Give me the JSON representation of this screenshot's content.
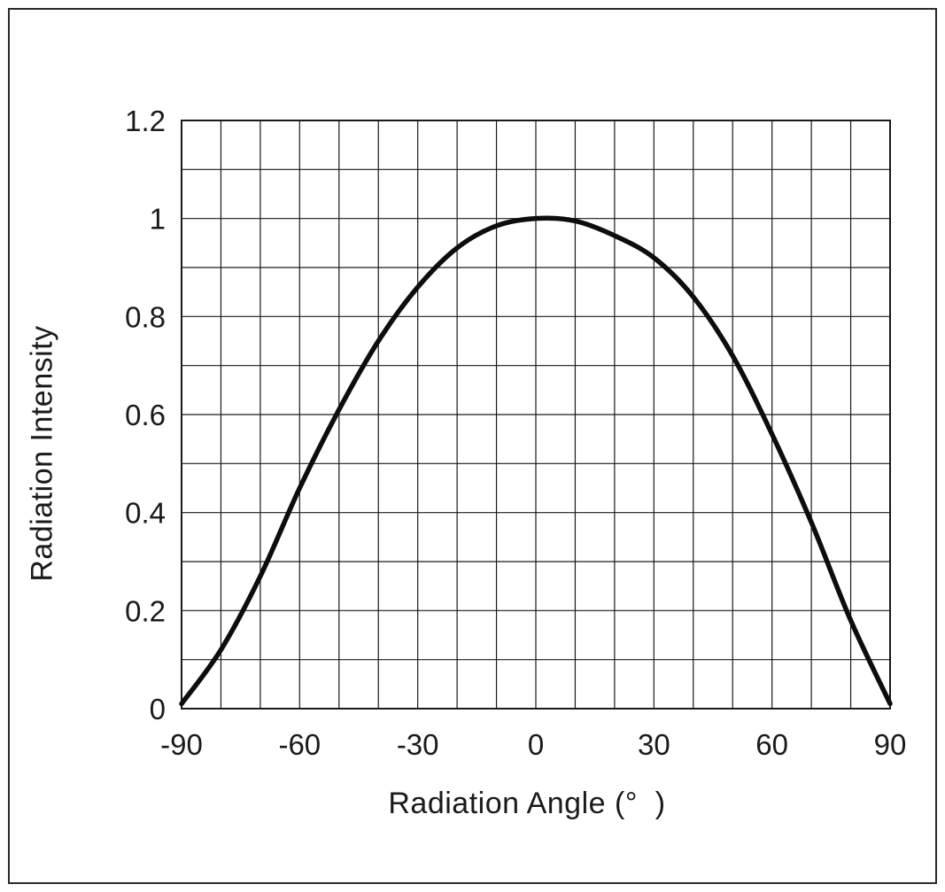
{
  "figure": {
    "background": "#ffffff",
    "frame_color": "#2a2a2a"
  },
  "chart_data": {
    "type": "line",
    "title": "",
    "xlabel": "Radiation Angle (°  )",
    "ylabel": "Radiation Intensity",
    "xlim": [
      -90,
      90
    ],
    "ylim": [
      0,
      1.2
    ],
    "x_major_ticks": [
      -90,
      -60,
      -30,
      0,
      30,
      60,
      90
    ],
    "x_tick_labels": [
      "-90",
      "-60",
      "-30",
      "0",
      "30",
      "60",
      "90"
    ],
    "y_major_ticks": [
      0,
      0.2,
      0.4,
      0.6,
      0.8,
      1,
      1.2
    ],
    "y_tick_labels": [
      "0",
      "0.2",
      "0.4",
      "0.6",
      "0.8",
      "1",
      "1.2"
    ],
    "x_minor_step": 10,
    "y_minor_step": 0.1,
    "grid": true,
    "grid_color": "#1a1a1a",
    "text_color": "#1a1a1a",
    "legend": "none",
    "series": [
      {
        "name": "radiation-pattern",
        "color": "#0d0d0d",
        "width": 5.5,
        "x": [
          -90,
          -80,
          -70,
          -60,
          -50,
          -40,
          -30,
          -20,
          -10,
          0,
          10,
          20,
          30,
          40,
          50,
          60,
          70,
          80,
          90
        ],
        "y": [
          0.01,
          0.12,
          0.27,
          0.45,
          0.61,
          0.75,
          0.86,
          0.94,
          0.985,
          1.0,
          0.995,
          0.965,
          0.92,
          0.84,
          0.72,
          0.56,
          0.38,
          0.18,
          0.01
        ]
      }
    ]
  }
}
